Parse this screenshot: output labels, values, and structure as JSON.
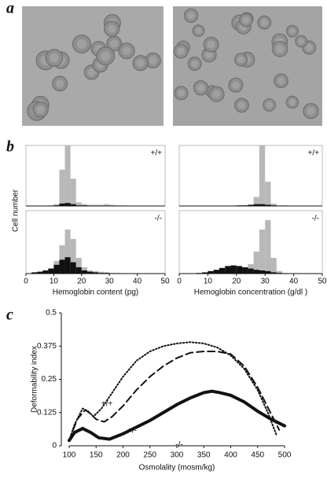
{
  "figure": {
    "panel_labels": [
      "a",
      "b",
      "c"
    ],
    "shared_ylabel": "Cell number"
  },
  "chart_data": [
    {
      "type": "histogram",
      "annotation": "+/+",
      "bins": [
        0,
        2,
        4,
        6,
        8,
        10,
        12,
        14,
        16,
        18,
        20,
        22,
        24,
        26,
        28,
        30,
        32,
        34,
        36,
        38,
        40,
        42,
        44,
        46,
        48,
        50
      ],
      "xlim": [
        0,
        50
      ],
      "ylim": [
        0,
        100
      ],
      "series": [
        {
          "color": "#b8b8b8",
          "values": [
            0,
            0,
            0,
            0,
            1,
            3,
            60,
            100,
            45,
            6,
            3,
            2,
            2,
            2,
            3,
            2,
            1,
            1,
            0,
            0,
            0,
            0,
            0,
            0,
            0
          ]
        },
        {
          "color": "#111111",
          "values": [
            0,
            0,
            0,
            0,
            0,
            1,
            4,
            5,
            3,
            1,
            1,
            0,
            0,
            0,
            0,
            0,
            0,
            0,
            0,
            0,
            0,
            0,
            0,
            0,
            0
          ]
        }
      ]
    },
    {
      "type": "histogram",
      "annotation": "-/-",
      "xlabel": "Hemoglobin content (pg)",
      "bins": [
        0,
        2,
        4,
        6,
        8,
        10,
        12,
        14,
        16,
        18,
        20,
        22,
        24,
        26,
        28,
        30,
        32,
        34,
        36,
        38,
        40,
        42,
        44,
        46,
        48,
        50
      ],
      "xlim": [
        0,
        50
      ],
      "xticks": [
        0,
        10,
        20,
        30,
        40,
        50
      ],
      "ylim": [
        0,
        100
      ],
      "series": [
        {
          "color": "#b8b8b8",
          "values": [
            0,
            1,
            2,
            4,
            8,
            20,
            45,
            70,
            55,
            25,
            10,
            5,
            4,
            3,
            2,
            1,
            1,
            0,
            0,
            0,
            0,
            0,
            0,
            0,
            0
          ]
        },
        {
          "color": "#111111",
          "values": [
            0,
            2,
            3,
            5,
            8,
            14,
            22,
            26,
            18,
            10,
            5,
            3,
            2,
            1,
            1,
            0,
            0,
            0,
            0,
            0,
            0,
            0,
            0,
            0,
            0
          ]
        }
      ]
    },
    {
      "type": "histogram",
      "annotation": "+/+",
      "bins": [
        0,
        2,
        4,
        6,
        8,
        10,
        12,
        14,
        16,
        18,
        20,
        22,
        24,
        26,
        28,
        30,
        32,
        34,
        36,
        38,
        40,
        42,
        44,
        46,
        48,
        50
      ],
      "xlim": [
        0,
        50
      ],
      "ylim": [
        0,
        100
      ],
      "series": [
        {
          "color": "#b8b8b8",
          "values": [
            0,
            0,
            0,
            0,
            0,
            0,
            0,
            0,
            0,
            0,
            0,
            1,
            2,
            15,
            100,
            40,
            4,
            1,
            1,
            0,
            0,
            0,
            0,
            0,
            0
          ]
        },
        {
          "color": "#111111",
          "values": [
            0,
            0,
            0,
            0,
            0,
            0,
            0,
            0,
            0,
            0,
            1,
            1,
            2,
            3,
            3,
            2,
            1,
            0,
            0,
            0,
            0,
            0,
            0,
            0,
            0
          ]
        }
      ]
    },
    {
      "type": "histogram",
      "annotation": "-/-",
      "xlabel": "Hemoglobin concentration (g/dl )",
      "bins": [
        0,
        2,
        4,
        6,
        8,
        10,
        12,
        14,
        16,
        18,
        20,
        22,
        24,
        26,
        28,
        30,
        32,
        34,
        36,
        38,
        40,
        42,
        44,
        46,
        48,
        50
      ],
      "xlim": [
        0,
        50
      ],
      "xticks": [
        0,
        10,
        20,
        30,
        40,
        50
      ],
      "ylim": [
        0,
        100
      ],
      "series": [
        {
          "color": "#b8b8b8",
          "values": [
            0,
            0,
            0,
            0,
            0,
            0,
            1,
            2,
            3,
            4,
            6,
            8,
            15,
            35,
            70,
            85,
            25,
            4,
            1,
            0,
            0,
            0,
            0,
            0,
            0
          ]
        },
        {
          "color": "#111111",
          "values": [
            0,
            0,
            0,
            1,
            2,
            4,
            6,
            9,
            12,
            13,
            12,
            10,
            8,
            6,
            5,
            4,
            2,
            1,
            0,
            0,
            0,
            0,
            0,
            0,
            0
          ]
        }
      ]
    },
    {
      "type": "line",
      "xlabel": "Osmolality (mosm/kg)",
      "ylabel": "Deformability index",
      "xlim": [
        100,
        500
      ],
      "xticks": [
        100,
        150,
        200,
        250,
        300,
        350,
        400,
        450,
        500
      ],
      "ylim": [
        0,
        0.5
      ],
      "yticks": [
        0,
        0.125,
        0.25,
        0.375,
        0.5
      ],
      "series": [
        {
          "name": "+/+",
          "color": "#111111",
          "dash": "1.5 2.5",
          "width": 2,
          "x": [
            100,
            110,
            125,
            135,
            145,
            160,
            180,
            200,
            225,
            250,
            275,
            300,
            325,
            350,
            375,
            400,
            425,
            450,
            470,
            485
          ],
          "values": [
            0.02,
            0.08,
            0.14,
            0.13,
            0.11,
            0.14,
            0.2,
            0.26,
            0.32,
            0.355,
            0.375,
            0.385,
            0.39,
            0.385,
            0.37,
            0.34,
            0.29,
            0.21,
            0.12,
            0.04
          ]
        },
        {
          "name": "+/-",
          "color": "#111111",
          "dash": "9 5",
          "width": 2,
          "x": [
            100,
            115,
            130,
            140,
            150,
            165,
            180,
            200,
            225,
            250,
            275,
            300,
            325,
            350,
            375,
            400,
            425,
            450,
            470,
            490
          ],
          "values": [
            0.02,
            0.1,
            0.135,
            0.12,
            0.1,
            0.09,
            0.11,
            0.15,
            0.21,
            0.26,
            0.3,
            0.33,
            0.35,
            0.355,
            0.355,
            0.345,
            0.3,
            0.22,
            0.14,
            0.06
          ]
        },
        {
          "name": "-/-",
          "color": "#111111",
          "dash": "none",
          "width": 4,
          "x": [
            100,
            110,
            125,
            140,
            155,
            175,
            200,
            225,
            250,
            275,
            300,
            325,
            350,
            365,
            380,
            400,
            425,
            450,
            475,
            500
          ],
          "values": [
            0.02,
            0.05,
            0.065,
            0.05,
            0.03,
            0.025,
            0.045,
            0.07,
            0.095,
            0.125,
            0.155,
            0.18,
            0.2,
            0.205,
            0.2,
            0.19,
            0.165,
            0.13,
            0.1,
            0.075
          ]
        }
      ]
    }
  ]
}
